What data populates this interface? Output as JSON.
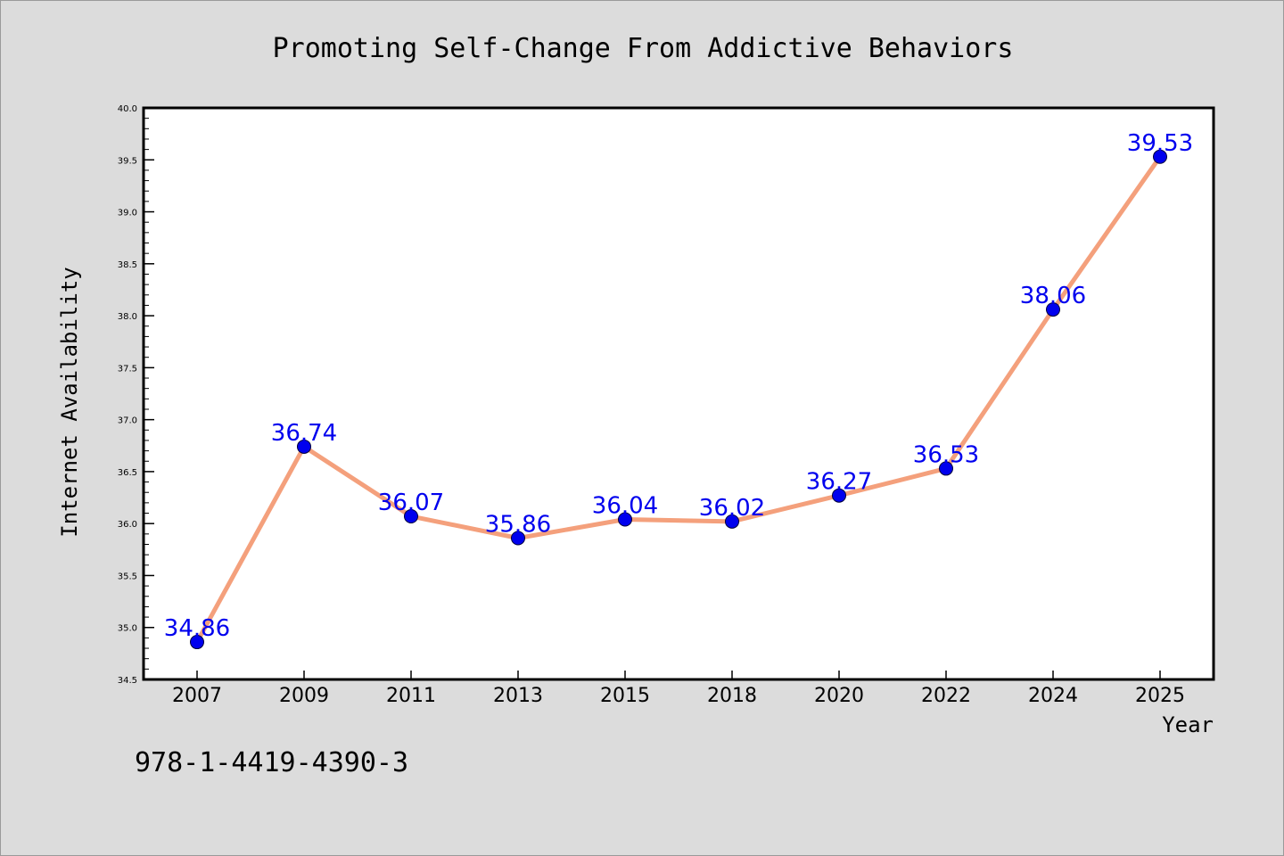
{
  "chart_data": {
    "type": "line",
    "title": "Promoting Self-Change From Addictive Behaviors",
    "xlabel": "Year",
    "ylabel": "Internet Availability",
    "categories": [
      "2007",
      "2009",
      "2011",
      "2013",
      "2015",
      "2018",
      "2020",
      "2022",
      "2024",
      "2025"
    ],
    "series": [
      {
        "values": [
          34.86,
          36.74,
          36.07,
          35.86,
          36.04,
          36.02,
          36.27,
          36.53,
          38.06,
          39.53
        ],
        "labels": [
          "34.86",
          "36.74",
          "36.07",
          "35.86",
          "36.04",
          "36.02",
          "36.27",
          "36.53",
          "38.06",
          "39.53"
        ],
        "line_color": "#f4a07c",
        "marker_color": "#0000ee",
        "label_color": "#0000ee"
      }
    ],
    "ylim": [
      34.5,
      40.0
    ],
    "yticks": [
      "34.5",
      "35.0",
      "35.5",
      "36.0",
      "36.5",
      "37.0",
      "37.5",
      "38.0",
      "38.5",
      "39.0",
      "39.5",
      "40.0"
    ],
    "grid": false,
    "legend": "none"
  },
  "footer": {
    "isbn": "978-1-4419-4390-3"
  },
  "colors": {
    "background": "#dcdcdc",
    "plot_background": "#ffffff",
    "axis": "#000000"
  }
}
